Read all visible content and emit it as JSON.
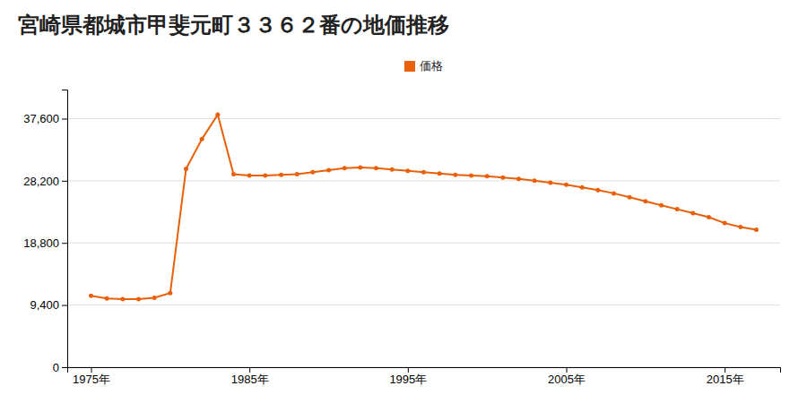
{
  "chart_data": {
    "type": "line",
    "title": "宮崎県都城市甲斐元町３３６２番の地価推移",
    "x": [
      1975,
      1976,
      1977,
      1978,
      1979,
      1980,
      1981,
      1982,
      1983,
      1984,
      1985,
      1986,
      1987,
      1988,
      1989,
      1990,
      1991,
      1992,
      1993,
      1994,
      1995,
      1996,
      1997,
      1998,
      1999,
      2000,
      2001,
      2002,
      2003,
      2004,
      2005,
      2006,
      2007,
      2008,
      2009,
      2010,
      2011,
      2012,
      2013,
      2014,
      2015,
      2016,
      2017
    ],
    "series": [
      {
        "name": "価格",
        "color": "#E8600A",
        "marker": "circle",
        "values": [
          10800,
          10400,
          10300,
          10300,
          10500,
          11200,
          30000,
          34500,
          38200,
          29200,
          29000,
          29000,
          29100,
          29200,
          29500,
          29800,
          30100,
          30200,
          30100,
          29900,
          29700,
          29500,
          29300,
          29100,
          29000,
          28900,
          28700,
          28500,
          28200,
          27900,
          27600,
          27200,
          26800,
          26300,
          25700,
          25100,
          24500,
          23900,
          23300,
          22700,
          21800,
          21200,
          20800
        ]
      }
    ],
    "xlim": [
      1973.5,
      2018.5
    ],
    "xticks": [
      {
        "value": 1975,
        "label": "1975年"
      },
      {
        "value": 1985,
        "label": "1985年"
      },
      {
        "value": 1995,
        "label": "1995年"
      },
      {
        "value": 2005,
        "label": "2005年"
      },
      {
        "value": 2015,
        "label": "2015年"
      }
    ],
    "ylim": [
      0,
      42000
    ],
    "yticks": [
      0,
      {
        "value": 9400,
        "label": "9,400"
      },
      {
        "value": 18800,
        "label": "18,800"
      },
      {
        "value": 28200,
        "label": "28,200"
      },
      {
        "value": 37600,
        "label": "37,600"
      }
    ],
    "grid": true,
    "legend": "top"
  }
}
